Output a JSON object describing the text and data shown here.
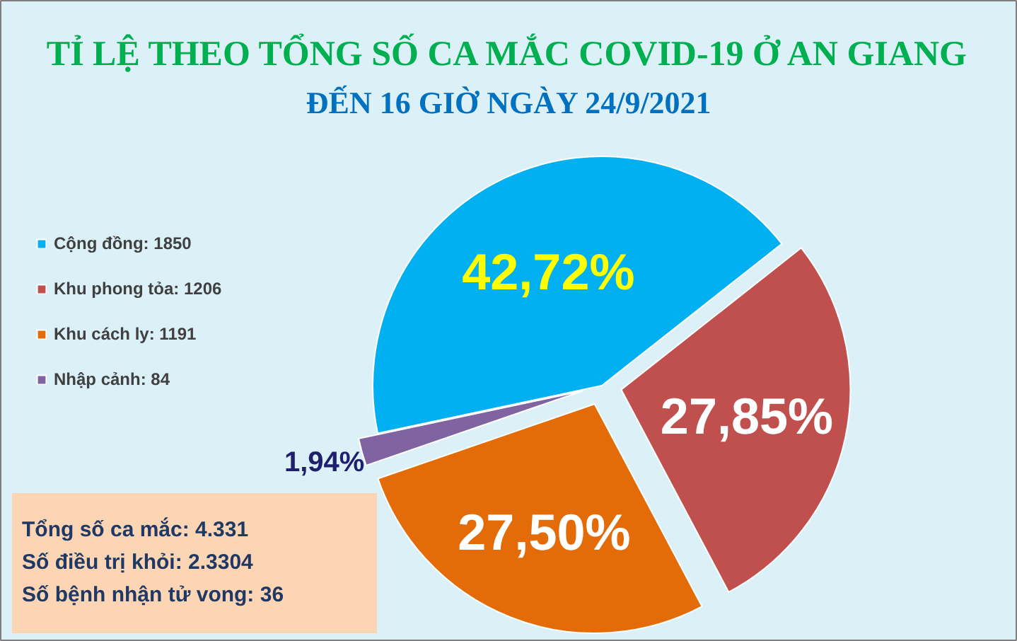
{
  "chart_data": {
    "type": "pie",
    "title": "TỈ LỆ THEO TỔNG SỐ CA MẮC COVID-19 Ở AN GIANG",
    "subtitle": "ĐẾN 16 GIỜ NGÀY 24/9/2021",
    "categories": [
      "Cộng đồng: 1850",
      "Khu phong tỏa: 1206",
      "Khu cách ly: 1191",
      "Nhập cảnh: 84"
    ],
    "values": [
      42.72,
      27.85,
      27.5,
      1.94
    ],
    "colors": [
      "#00b0f0",
      "#c0504d",
      "#e36c09",
      "#8064a2"
    ],
    "value_labels": [
      "42,72%",
      "27,85%",
      "27,50%",
      "1,94%"
    ],
    "legend": "left",
    "annotations": [
      "Tổng số ca mắc: 4.331",
      "Số điều trị khỏi: 2.3304",
      "Số bệnh nhận tử vong: 36"
    ]
  }
}
